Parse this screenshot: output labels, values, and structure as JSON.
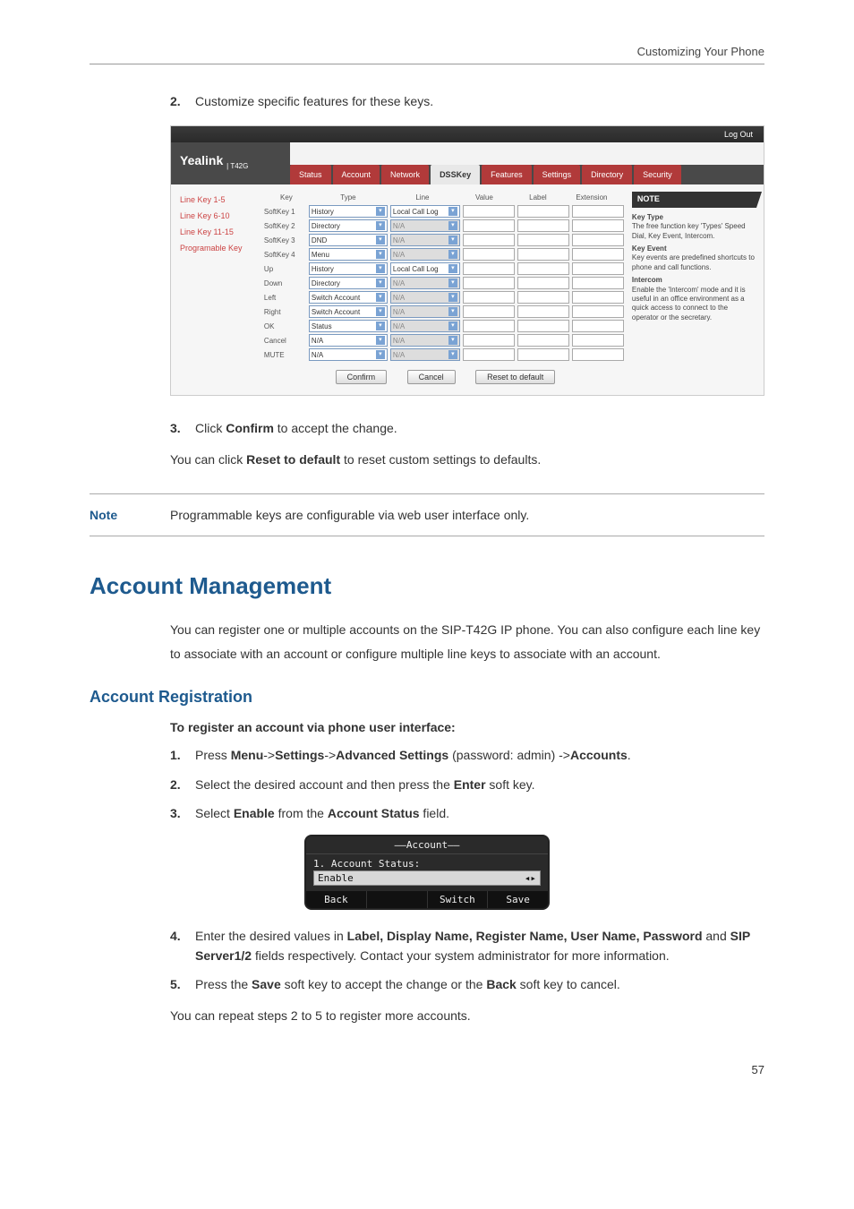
{
  "header": {
    "running_title": "Customizing Your Phone"
  },
  "steps_top": {
    "s2_num": "2.",
    "s2_text": "Customize specific features for these keys."
  },
  "yealink": {
    "logout": "Log Out",
    "logo": "Yealink",
    "logo_model": "T42G",
    "tabs": {
      "status": "Status",
      "account": "Account",
      "network": "Network",
      "dsskey": "DSSKey",
      "features": "Features",
      "settings": "Settings",
      "directory": "Directory",
      "security": "Security"
    },
    "side": {
      "lk15": "Line Key 1-5",
      "lk610": "Line Key 6-10",
      "lk1115": "Line Key 11-15",
      "prog": "Programable Key"
    },
    "cols": {
      "key": "Key",
      "type": "Type",
      "line": "Line",
      "value": "Value",
      "label": "Label",
      "ext": "Extension"
    },
    "rows": [
      {
        "key": "SoftKey 1",
        "type": "History",
        "line": "Local Call Log",
        "line_en": true
      },
      {
        "key": "SoftKey 2",
        "type": "Directory",
        "line": "N/A",
        "line_en": false
      },
      {
        "key": "SoftKey 3",
        "type": "DND",
        "line": "N/A",
        "line_en": false
      },
      {
        "key": "SoftKey 4",
        "type": "Menu",
        "line": "N/A",
        "line_en": false
      },
      {
        "key": "Up",
        "type": "History",
        "line": "Local Call Log",
        "line_en": true
      },
      {
        "key": "Down",
        "type": "Directory",
        "line": "N/A",
        "line_en": false
      },
      {
        "key": "Left",
        "type": "Switch Account",
        "line": "N/A",
        "line_en": false
      },
      {
        "key": "Right",
        "type": "Switch Account",
        "line": "N/A",
        "line_en": false
      },
      {
        "key": "OK",
        "type": "Status",
        "line": "N/A",
        "line_en": false
      },
      {
        "key": "Cancel",
        "type": "N/A",
        "line": "N/A",
        "line_en": false
      },
      {
        "key": "MUTE",
        "type": "N/A",
        "line": "N/A",
        "line_en": false
      }
    ],
    "buttons": {
      "confirm": "Confirm",
      "cancel": "Cancel",
      "reset": "Reset to default"
    },
    "note_panel": {
      "title": "NOTE",
      "kt_h": "Key Type",
      "kt_b": "The free function key 'Types' Speed Dial, Key Event, Intercom.",
      "ke_h": "Key Event",
      "ke_b": "Key events are predefined shortcuts to phone and call functions.",
      "ic_h": "Intercom",
      "ic_b": "Enable the 'Intercom' mode and it is useful in an office environment as a quick access to connect to the operator or the secretary."
    }
  },
  "after_shot": {
    "s3_num": "3.",
    "s3_pre": "Click ",
    "s3_bold": "Confirm",
    "s3_post": " to accept the change.",
    "line2_pre": "You can click ",
    "line2_bold": "Reset to default",
    "line2_post": " to reset custom settings to defaults."
  },
  "note": {
    "label": "Note",
    "text": "Programmable keys are configurable via web user interface only."
  },
  "account_mgmt": {
    "title": "Account Management",
    "para": "You can register one or multiple accounts on the SIP-T42G IP phone. You can also configure each line key to associate with an account or configure multiple line keys to associate with an account."
  },
  "account_reg": {
    "title": "Account Registration",
    "heading": "To register an account via phone user interface:",
    "s1_num": "1.",
    "s1_a": "Press ",
    "s1_b1": "Menu",
    "s1_c1": "->",
    "s1_b2": "Settings",
    "s1_c2": "->",
    "s1_b3": "Advanced Settings",
    "s1_mid": " (password: admin) ->",
    "s1_b4": "Accounts",
    "s1_end": ".",
    "s2_num": "2.",
    "s2_a": "Select the desired account and then press the ",
    "s2_b": "Enter",
    "s2_c": " soft key.",
    "s3_num": "3.",
    "s3_a": "Select ",
    "s3_b": "Enable",
    "s3_c": " from the ",
    "s3_d": "Account Status",
    "s3_e": " field."
  },
  "lcd": {
    "title": "Account",
    "field_label": "1. Account Status:",
    "field_value": "Enable",
    "arrows": "◂▸",
    "soft": {
      "back": "Back",
      "blank": "",
      "switch": "Switch",
      "save": "Save"
    }
  },
  "after_lcd": {
    "s4_num": "4.",
    "s4_a": "Enter the desired values in ",
    "s4_b": "Label, Display Name, Register Name, User Name, Password",
    "s4_c": " and ",
    "s4_d": "SIP Server1/2",
    "s4_e": " fields respectively. Contact your system administrator for more information.",
    "s5_num": "5.",
    "s5_a": "Press the ",
    "s5_b": "Save",
    "s5_c": " soft key to accept the change or the ",
    "s5_d": "Back",
    "s5_e": " soft key to cancel.",
    "repeat": "You can repeat steps 2 to 5 to register more accounts."
  },
  "page_num": "57"
}
